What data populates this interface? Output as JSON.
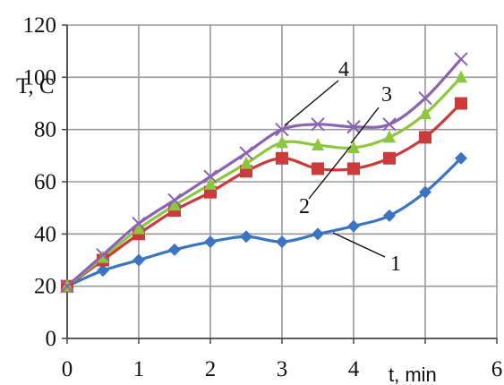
{
  "chart_data": {
    "type": "line",
    "xlabel": "t, min",
    "ylabel": "T, C",
    "xlim": [
      0,
      6
    ],
    "ylim": [
      0,
      120
    ],
    "x_ticks": [
      "0",
      "1",
      "2",
      "3",
      "4",
      "6"
    ],
    "y_ticks": [
      "0",
      "20",
      "40",
      "60",
      "80",
      "100",
      "120"
    ],
    "grid": true,
    "series": [
      {
        "name": "1",
        "color": "#3a75c4",
        "marker": "diamond",
        "x": [
          0,
          0.5,
          1,
          1.5,
          2,
          2.5,
          3,
          3.5,
          4,
          4.5,
          5,
          5.5
        ],
        "y": [
          20,
          26,
          30,
          34,
          37,
          39,
          37,
          40,
          43,
          47,
          56,
          69
        ]
      },
      {
        "name": "2",
        "color": "#cc3b3b",
        "marker": "square",
        "x": [
          0,
          0.5,
          1,
          1.5,
          2,
          2.5,
          3,
          3.5,
          4,
          4.5,
          5,
          5.5
        ],
        "y": [
          20,
          30,
          40,
          49,
          56,
          64,
          69,
          65,
          65,
          69,
          77,
          90
        ]
      },
      {
        "name": "3",
        "color": "#8dc63f",
        "marker": "triangle",
        "x": [
          0,
          0.5,
          1,
          1.5,
          2,
          2.5,
          3,
          3.5,
          4,
          4.5,
          5,
          5.5
        ],
        "y": [
          20,
          31,
          42,
          51,
          59,
          67,
          75,
          74,
          73,
          77,
          86,
          100
        ]
      },
      {
        "name": "4",
        "color": "#8a63b3",
        "marker": "x",
        "x": [
          0,
          0.5,
          1,
          1.5,
          2,
          2.5,
          3,
          3.5,
          4,
          4.5,
          5,
          5.5
        ],
        "y": [
          20,
          32,
          44,
          53,
          62,
          71,
          80,
          82,
          81,
          82,
          92,
          107
        ]
      }
    ],
    "curve_labels": [
      "1",
      "2",
      "3",
      "4"
    ]
  }
}
